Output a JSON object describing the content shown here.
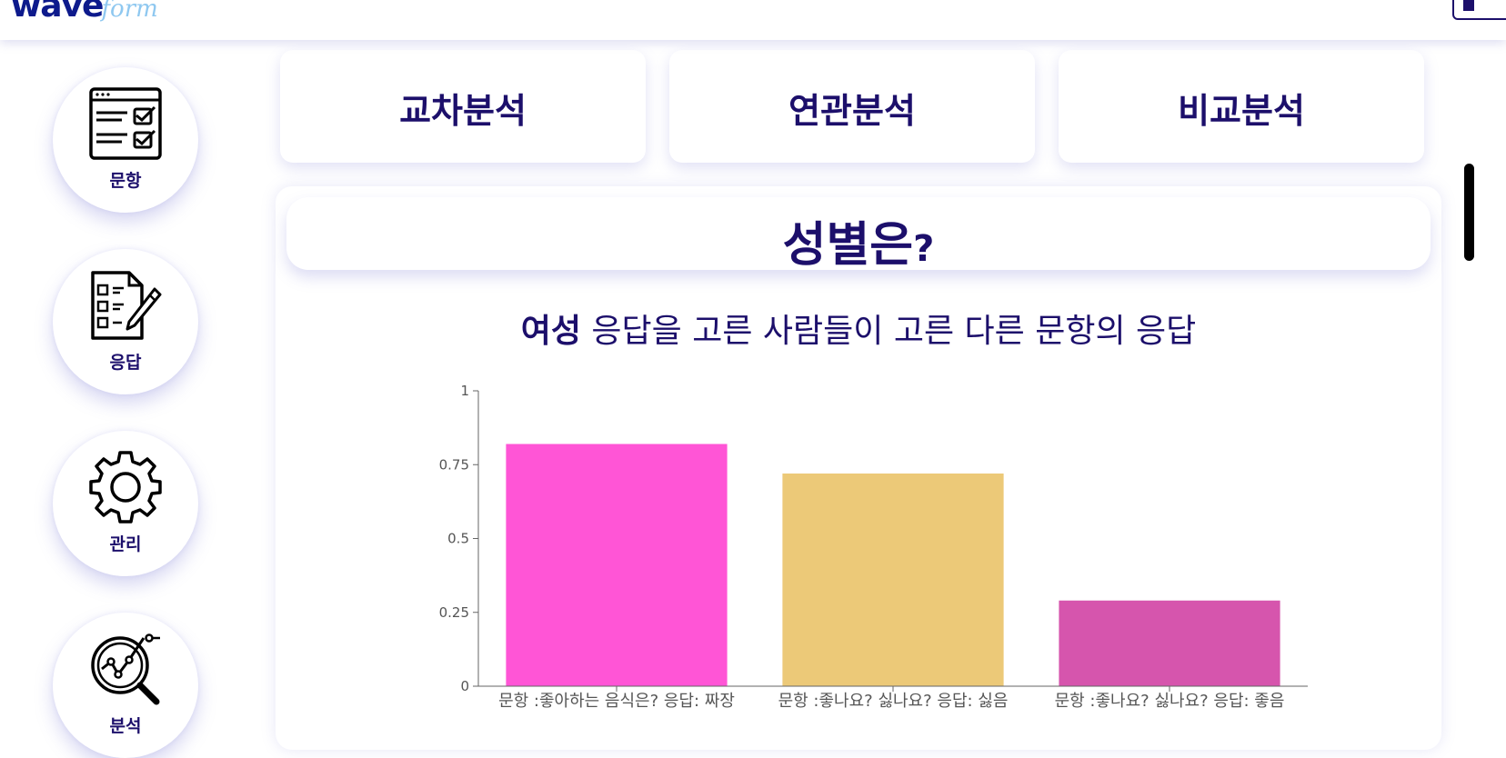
{
  "header": {
    "logo_primary": "wave",
    "logo_secondary": "form"
  },
  "sidebar": {
    "items": [
      {
        "label": "문항",
        "icon": "checklist-icon"
      },
      {
        "label": "응답",
        "icon": "form-pencil-icon"
      },
      {
        "label": "관리",
        "icon": "gear-icon"
      },
      {
        "label": "분석",
        "icon": "analytics-magnifier-icon"
      }
    ]
  },
  "tabs": [
    {
      "label": "교차분석"
    },
    {
      "label": "연관분석"
    },
    {
      "label": "비교분석"
    }
  ],
  "question": {
    "title_main": "성별은",
    "title_mark": "?"
  },
  "subtitle": {
    "highlight": "여성",
    "rest": " 응답을 고른 사람들이 고른 다른 문항의 응답"
  },
  "colors": {
    "primary_text": "#1c0f6b",
    "bar_1": "#ff55d6",
    "bar_2": "#ecc978",
    "bar_3": "#d655ad"
  },
  "chart_data": {
    "type": "bar",
    "categories": [
      "문항 :좋아하는 음식은? 응답: 짜장",
      "문항 :좋나요? 싫나요? 응답: 싫음",
      "문항 :좋나요? 싫나요? 응답: 좋음"
    ],
    "values": [
      0.82,
      0.72,
      0.29
    ],
    "ylim": [
      0,
      1
    ],
    "yticks": [
      0,
      0.25,
      0.5,
      0.75,
      1
    ],
    "ytick_labels": [
      "0",
      "0.25",
      "0.5",
      "0.75",
      "1"
    ],
    "grid": false
  }
}
